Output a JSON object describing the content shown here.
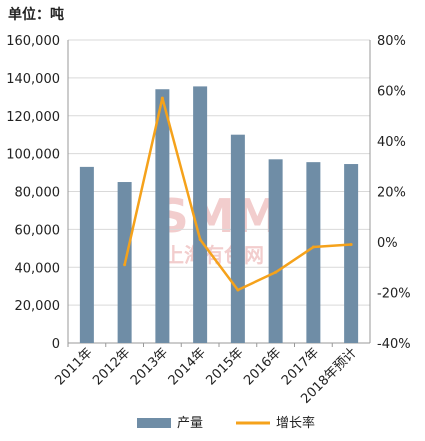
{
  "unit_label": "单位：吨",
  "watermark": {
    "main": "SMM",
    "sub": "上海有色网",
    "color": "#e8a6a6"
  },
  "colors": {
    "bar": "#6f8da6",
    "line": "#f5a21b",
    "grid": "#d9d9d9",
    "axis": "#999999",
    "text": "#222222"
  },
  "chart_data": {
    "type": "bar",
    "categories": [
      "2011年",
      "2012年",
      "2013年",
      "2014年",
      "2015年",
      "2016年",
      "2017年",
      "2018年预计"
    ],
    "series": [
      {
        "name": "产量",
        "type": "bar",
        "axis": "left",
        "values": [
          93000,
          85000,
          134000,
          135500,
          110000,
          97000,
          95500,
          94500
        ]
      },
      {
        "name": "增长率",
        "type": "line",
        "axis": "right",
        "values": [
          null,
          -9,
          57,
          1,
          -19,
          -12,
          -2,
          -1
        ]
      }
    ],
    "y_left": {
      "lim": [
        0,
        160000
      ],
      "ticks": [
        "0",
        "20,000",
        "40,000",
        "60,000",
        "80,000",
        "100,000",
        "120,000",
        "140,000",
        "160,000"
      ]
    },
    "y_right": {
      "lim": [
        -40,
        80
      ],
      "ticks": [
        "-40%",
        "-20%",
        "0%",
        "20%",
        "40%",
        "60%",
        "80%"
      ]
    },
    "grid": true,
    "legend_position": "bottom"
  }
}
